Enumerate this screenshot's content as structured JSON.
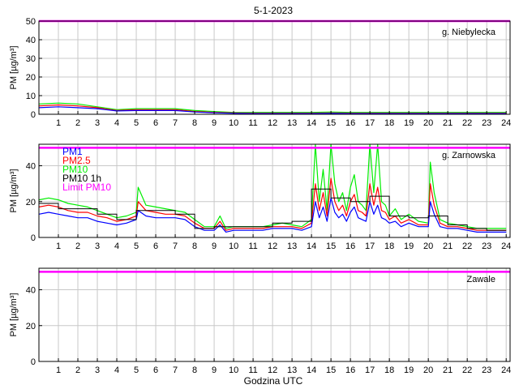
{
  "figure": {
    "title": "5-1-2023",
    "xlabel": "Godzina UTC"
  },
  "colors": {
    "pm1": "#0000ff",
    "pm25": "#ff0000",
    "pm10": "#00ee00",
    "pm10_1h": "#000000",
    "limit": "#ff00ff",
    "grid": "#c8c8c8",
    "axis": "#000000"
  },
  "chart_data": [
    {
      "type": "line",
      "station": "g. Niebylecka",
      "ylabel": "PM [µg/m³]",
      "xlim": [
        0,
        24.2
      ],
      "ylim": [
        0,
        50
      ],
      "xticks": [
        1,
        2,
        3,
        4,
        5,
        6,
        7,
        8,
        9,
        10,
        11,
        12,
        13,
        14,
        15,
        16,
        17,
        18,
        19,
        20,
        21,
        22,
        23,
        24
      ],
      "yticks": [
        0,
        10,
        20,
        30,
        40,
        50
      ],
      "grid": true,
      "limit_pm10": 50,
      "series": [
        {
          "key": "pm10",
          "x": [
            0,
            1,
            2,
            3,
            4,
            5,
            6,
            7,
            8,
            9,
            10,
            11,
            12,
            13,
            14,
            15,
            16,
            17,
            18,
            19,
            20,
            21,
            22,
            23,
            24
          ],
          "values": [
            5.5,
            6.0,
            5.5,
            4.0,
            2.5,
            3.0,
            3.0,
            3.0,
            2.0,
            1.5,
            1.0,
            1.0,
            1.0,
            1.0,
            1.0,
            1.2,
            1.0,
            1.0,
            1.0,
            1.0,
            1.0,
            1.0,
            1.0,
            1.0,
            1.0
          ]
        },
        {
          "key": "pm25",
          "x": [
            0,
            1,
            2,
            3,
            4,
            5,
            6,
            7,
            8,
            9,
            10,
            11,
            12,
            13,
            14,
            15,
            16,
            17,
            18,
            19,
            20,
            21,
            22,
            23,
            24
          ],
          "values": [
            4.5,
            5.0,
            4.5,
            3.5,
            2.0,
            2.5,
            2.5,
            2.5,
            1.5,
            1.0,
            0.7,
            0.6,
            0.6,
            0.6,
            0.6,
            0.7,
            0.6,
            0.6,
            0.6,
            0.6,
            0.6,
            0.6,
            0.6,
            0.6,
            0.6
          ]
        },
        {
          "key": "pm1",
          "x": [
            0,
            1,
            2,
            3,
            4,
            5,
            6,
            7,
            8,
            9,
            10,
            11,
            12,
            13,
            14,
            15,
            16,
            17,
            18,
            19,
            20,
            21,
            22,
            23,
            24
          ],
          "values": [
            3.5,
            4.0,
            3.5,
            3.0,
            1.8,
            2.0,
            2.0,
            2.0,
            1.2,
            0.8,
            0.5,
            0.4,
            0.4,
            0.4,
            0.4,
            0.5,
            0.4,
            0.4,
            0.4,
            0.4,
            0.4,
            0.4,
            0.4,
            0.4,
            0.4
          ]
        }
      ]
    },
    {
      "type": "line",
      "station": "g. Zarnowska",
      "ylabel": "PM [µg/m³]",
      "xlim": [
        0,
        24.2
      ],
      "ylim": [
        0,
        52
      ],
      "xticks": [
        1,
        2,
        3,
        4,
        5,
        6,
        7,
        8,
        9,
        10,
        11,
        12,
        13,
        14,
        15,
        16,
        17,
        18,
        19,
        20,
        21,
        22,
        23,
        24
      ],
      "yticks": [
        0,
        20,
        40
      ],
      "grid": true,
      "limit_pm10": 50,
      "legend": {
        "placement": "top-left",
        "entries": [
          {
            "key": "pm1",
            "label": "PM1"
          },
          {
            "key": "pm25",
            "label": "PM2.5"
          },
          {
            "key": "pm10",
            "label": "PM10"
          },
          {
            "key": "pm10_1h",
            "label": "PM10 1h"
          },
          {
            "key": "limit",
            "label": "Limit PM10"
          }
        ]
      },
      "series": [
        {
          "key": "pm10",
          "x": [
            0,
            0.5,
            1,
            1.5,
            2,
            2.5,
            3,
            3.5,
            4,
            4.5,
            5,
            5.1,
            5.5,
            6,
            6.5,
            7,
            7.5,
            8,
            8.5,
            9,
            9.3,
            9.6,
            10,
            10.5,
            11,
            11.5,
            12,
            12.5,
            13,
            13.5,
            14,
            14.2,
            14.4,
            14.6,
            14.8,
            15,
            15.2,
            15.4,
            15.6,
            15.8,
            16,
            16.2,
            16.4,
            16.6,
            16.8,
            17,
            17.2,
            17.4,
            17.6,
            17.8,
            18,
            18.3,
            18.6,
            19,
            19.5,
            20,
            20.1,
            20.3,
            20.6,
            21,
            21.5,
            22,
            22.5,
            23,
            23.5,
            24
          ],
          "values": [
            21,
            22,
            21,
            19,
            18,
            17,
            15,
            13,
            11,
            12,
            14,
            28,
            18,
            17,
            16,
            15,
            14,
            10,
            6,
            6,
            12,
            5,
            6,
            6,
            6,
            6,
            7,
            8,
            7,
            6,
            10,
            52,
            20,
            38,
            15,
            52,
            30,
            20,
            25,
            15,
            28,
            35,
            20,
            18,
            15,
            52,
            25,
            52,
            20,
            18,
            12,
            16,
            10,
            13,
            9,
            8,
            42,
            25,
            10,
            8,
            7,
            6,
            5,
            5,
            5,
            5
          ]
        },
        {
          "key": "pm25",
          "x": [
            0,
            0.5,
            1,
            1.5,
            2,
            2.5,
            3,
            3.5,
            4,
            4.5,
            5,
            5.1,
            5.5,
            6,
            6.5,
            7,
            7.5,
            8,
            8.5,
            9,
            9.3,
            9.6,
            10,
            10.5,
            11,
            11.5,
            12,
            12.5,
            13,
            13.5,
            14,
            14.2,
            14.4,
            14.6,
            14.8,
            15,
            15.2,
            15.4,
            15.6,
            15.8,
            16,
            16.2,
            16.4,
            16.6,
            16.8,
            17,
            17.2,
            17.4,
            17.6,
            17.8,
            18,
            18.3,
            18.6,
            19,
            19.5,
            20,
            20.1,
            20.3,
            20.6,
            21,
            21.5,
            22,
            22.5,
            23,
            23.5,
            24
          ],
          "values": [
            17,
            18,
            17,
            15,
            14,
            14,
            12,
            11,
            9,
            10,
            12,
            20,
            15,
            14,
            13,
            13,
            12,
            8,
            5,
            5,
            9,
            4,
            5,
            5,
            5,
            5,
            6,
            6,
            6,
            5,
            8,
            30,
            15,
            25,
            12,
            33,
            20,
            15,
            18,
            12,
            20,
            24,
            15,
            14,
            12,
            30,
            18,
            28,
            15,
            14,
            10,
            12,
            8,
            10,
            7,
            7,
            30,
            18,
            8,
            6,
            6,
            5,
            4,
            4,
            4,
            4
          ]
        },
        {
          "key": "pm1",
          "x": [
            0,
            0.5,
            1,
            1.5,
            2,
            2.5,
            3,
            3.5,
            4,
            4.5,
            5,
            5.1,
            5.5,
            6,
            6.5,
            7,
            7.5,
            8,
            8.5,
            9,
            9.3,
            9.6,
            10,
            10.5,
            11,
            11.5,
            12,
            12.5,
            13,
            13.5,
            14,
            14.2,
            14.4,
            14.6,
            14.8,
            15,
            15.2,
            15.4,
            15.6,
            15.8,
            16,
            16.2,
            16.4,
            16.6,
            16.8,
            17,
            17.2,
            17.4,
            17.6,
            17.8,
            18,
            18.3,
            18.6,
            19,
            19.5,
            20,
            20.1,
            20.3,
            20.6,
            21,
            21.5,
            22,
            22.5,
            23,
            23.5,
            24
          ],
          "values": [
            13,
            14,
            13,
            12,
            11,
            11,
            9,
            8,
            7,
            8,
            10,
            15,
            12,
            11,
            11,
            11,
            10,
            6,
            4,
            4,
            7,
            3,
            4,
            4,
            4,
            4,
            5,
            5,
            5,
            4,
            6,
            20,
            11,
            17,
            9,
            22,
            14,
            11,
            13,
            9,
            14,
            17,
            11,
            10,
            9,
            20,
            13,
            18,
            11,
            10,
            8,
            9,
            6,
            8,
            6,
            6,
            20,
            13,
            6,
            5,
            5,
            4,
            3,
            3,
            3,
            3
          ]
        }
      ],
      "pm10_1h": {
        "hours": [
          0,
          1,
          2,
          3,
          4,
          5,
          6,
          7,
          8,
          9,
          10,
          11,
          12,
          13,
          14,
          15,
          16,
          17,
          18,
          19,
          20,
          21,
          22,
          23
        ],
        "values": [
          19,
          16,
          16,
          13,
          10,
          15,
          15,
          13,
          5,
          6,
          6,
          6,
          8,
          9,
          27,
          22,
          20,
          23,
          12,
          11,
          12,
          7,
          5,
          4
        ]
      }
    },
    {
      "type": "line",
      "station": "Zawale",
      "ylabel": "PM [µg/m³]",
      "xlim": [
        0,
        24.2
      ],
      "ylim": [
        0,
        52
      ],
      "xticks": [
        1,
        2,
        3,
        4,
        5,
        6,
        7,
        8,
        9,
        10,
        11,
        12,
        13,
        14,
        15,
        16,
        17,
        18,
        19,
        20,
        21,
        22,
        23,
        24
      ],
      "yticks": [
        0,
        20,
        40
      ],
      "grid": true,
      "limit_pm10": 50,
      "series": []
    }
  ]
}
